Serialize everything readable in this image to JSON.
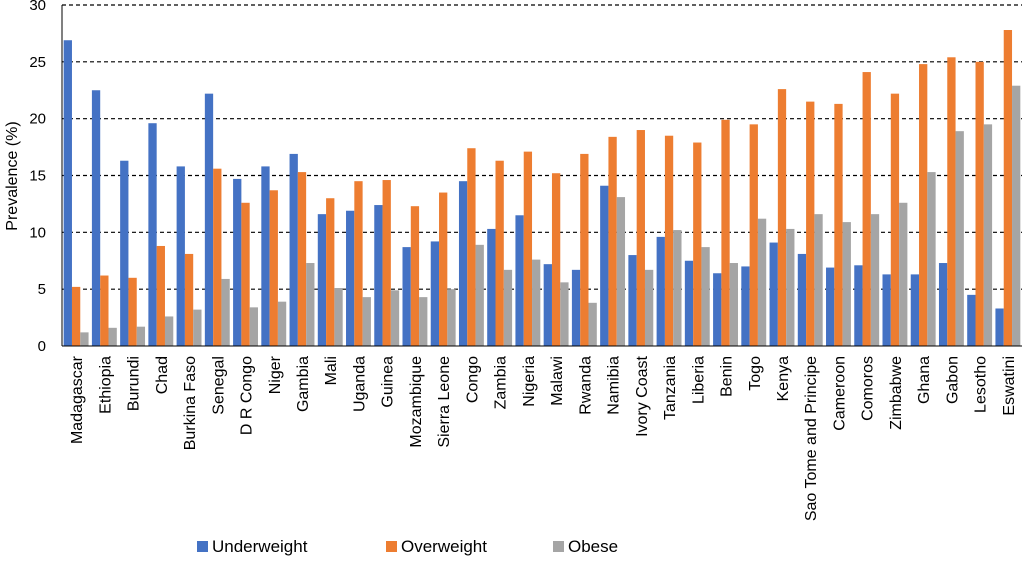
{
  "chart_data": {
    "type": "bar",
    "title": "",
    "xlabel": "",
    "ylabel": "Prevalence (%)",
    "ylim": [
      0,
      30
    ],
    "yticks": [
      0,
      5,
      10,
      15,
      20,
      25,
      30
    ],
    "grid": "horizontal dashed",
    "legend_position": "bottom",
    "categories": [
      "Madagascar",
      "Ethiopia",
      "Burundi",
      "Chad",
      "Burkina Faso",
      "Senegal",
      "D R Congo",
      "Niger",
      "Gambia",
      "Mali",
      "Uganda",
      "Guinea",
      "Mozambique",
      "Sierra Leone",
      "Congo",
      "Zambia",
      "Nigeria",
      "Malawi",
      "Rwanda",
      "Namibia",
      "Ivory Coast",
      "Tanzania",
      "Liberia",
      "Benin",
      "Togo",
      "Kenya",
      "Sao Tome and Principe",
      "Cameroon",
      "Comoros",
      "Zimbabwe",
      "Ghana",
      "Gabon",
      "Lesotho",
      "Eswatini"
    ],
    "series": [
      {
        "name": "Underweight",
        "color": "#4472C4",
        "values": [
          26.9,
          22.5,
          16.3,
          19.6,
          15.8,
          22.2,
          14.7,
          15.8,
          16.9,
          11.6,
          11.9,
          12.4,
          8.7,
          9.2,
          14.5,
          10.3,
          11.5,
          7.2,
          6.7,
          14.1,
          8.0,
          9.6,
          7.5,
          6.4,
          7.0,
          9.1,
          8.1,
          6.9,
          7.1,
          6.3,
          6.3,
          7.3,
          4.5,
          3.3
        ]
      },
      {
        "name": "Overweight",
        "color": "#ED7D31",
        "values": [
          5.2,
          6.2,
          6.0,
          8.8,
          8.1,
          15.6,
          12.6,
          13.7,
          15.3,
          13.0,
          14.5,
          14.6,
          12.3,
          13.5,
          17.4,
          16.3,
          17.1,
          15.2,
          16.9,
          18.4,
          19.0,
          18.5,
          17.9,
          19.9,
          19.5,
          22.6,
          21.5,
          21.3,
          24.1,
          22.2,
          24.8,
          25.4,
          25.0,
          27.8
        ]
      },
      {
        "name": "Obese",
        "color": "#A5A5A5",
        "values": [
          1.2,
          1.6,
          1.7,
          2.6,
          3.2,
          5.9,
          3.4,
          3.9,
          7.3,
          5.1,
          4.3,
          4.9,
          4.3,
          5.0,
          8.9,
          6.7,
          7.6,
          5.6,
          3.8,
          13.1,
          6.7,
          10.2,
          8.7,
          7.3,
          11.2,
          10.3,
          11.6,
          10.9,
          11.6,
          12.6,
          15.3,
          18.9,
          19.5,
          22.9
        ]
      }
    ]
  }
}
